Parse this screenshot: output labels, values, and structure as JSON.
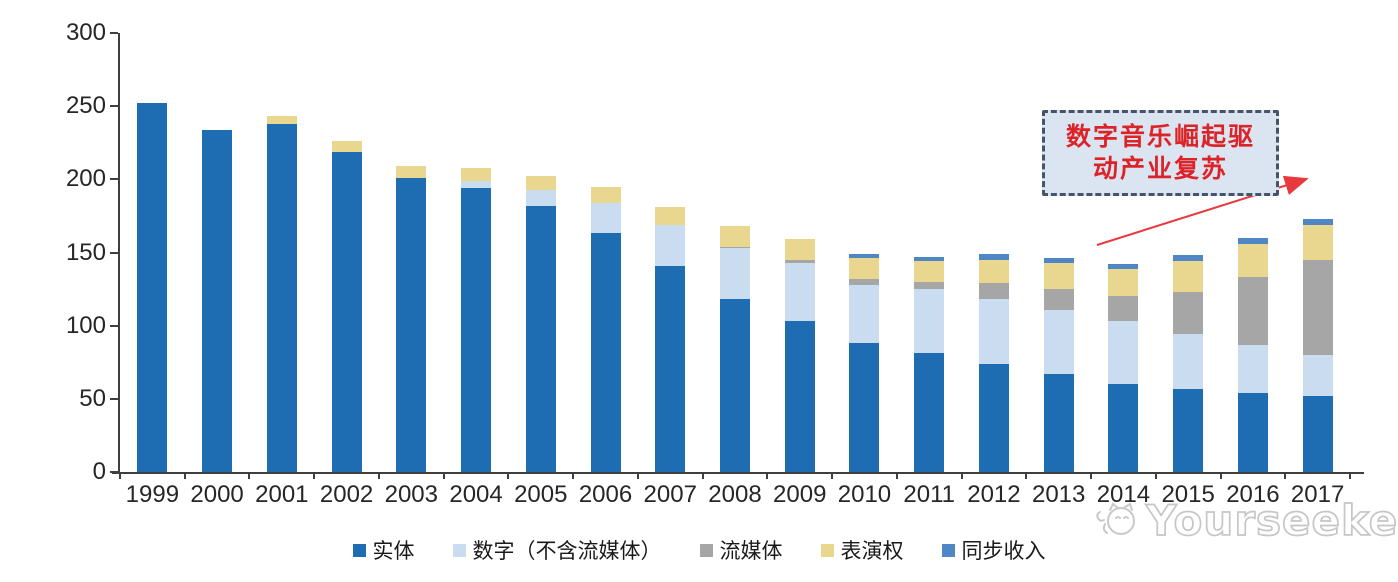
{
  "chart_data": {
    "type": "bar",
    "subtype": "stacked",
    "title": "",
    "xlabel": "",
    "ylabel": "",
    "ylim": [
      0,
      300
    ],
    "yticks": [
      0,
      50,
      100,
      150,
      200,
      250,
      300
    ],
    "grid": false,
    "legend_position": "bottom",
    "axis_color": "#3f3f3f",
    "tick_label_color": "#262626",
    "categories": [
      "1999",
      "2000",
      "2001",
      "2002",
      "2003",
      "2004",
      "2005",
      "2006",
      "2007",
      "2008",
      "2009",
      "2010",
      "2011",
      "2012",
      "2013",
      "2014",
      "2015",
      "2016",
      "2017"
    ],
    "series": [
      {
        "name": "实体",
        "color": "#1e6cb1",
        "values": [
          252,
          234,
          238,
          219,
          201,
          194,
          182,
          163,
          141,
          118,
          103,
          88,
          81,
          74,
          67,
          60,
          57,
          54,
          52
        ]
      },
      {
        "name": "数字（不含流媒体）",
        "color": "#c9dcf0",
        "values": [
          0,
          0,
          0,
          0,
          0,
          5,
          11,
          21,
          28,
          35,
          40,
          40,
          44,
          44,
          44,
          43,
          37,
          33,
          28
        ]
      },
      {
        "name": "流媒体",
        "color": "#a6a6a6",
        "values": [
          0,
          0,
          0,
          0,
          0,
          0,
          0,
          0,
          0,
          1,
          2,
          4,
          5,
          11,
          14,
          17,
          29,
          46,
          65
        ]
      },
      {
        "name": "表演权",
        "color": "#ead78f",
        "values": [
          0,
          0,
          5,
          7,
          8,
          9,
          9,
          11,
          12,
          14,
          14,
          14,
          14,
          16,
          18,
          19,
          21,
          23,
          24
        ]
      },
      {
        "name": "同步收入",
        "color": "#4e86c6",
        "values": [
          0,
          0,
          0,
          0,
          0,
          0,
          0,
          0,
          0,
          0,
          0,
          3,
          3,
          4,
          3,
          3,
          4,
          4,
          4
        ]
      }
    ]
  },
  "annotation": {
    "line1": "数字音乐崛起驱",
    "line2": "动产业复苏",
    "text_color": "#dc2428",
    "box_bg": "#dbe5f2",
    "border_color": "#44546a",
    "arrow_color": "#e8393e"
  },
  "watermark": {
    "text": "Yourseeker"
  }
}
